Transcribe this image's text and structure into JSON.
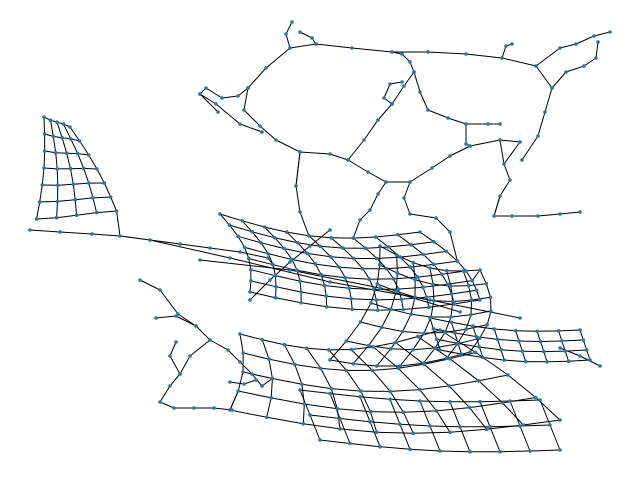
{
  "figure": {
    "type": "network-graph",
    "style": {
      "background": "#ffffff",
      "edge_color": "#000000",
      "node_color": "#1f77b4"
    }
  }
}
